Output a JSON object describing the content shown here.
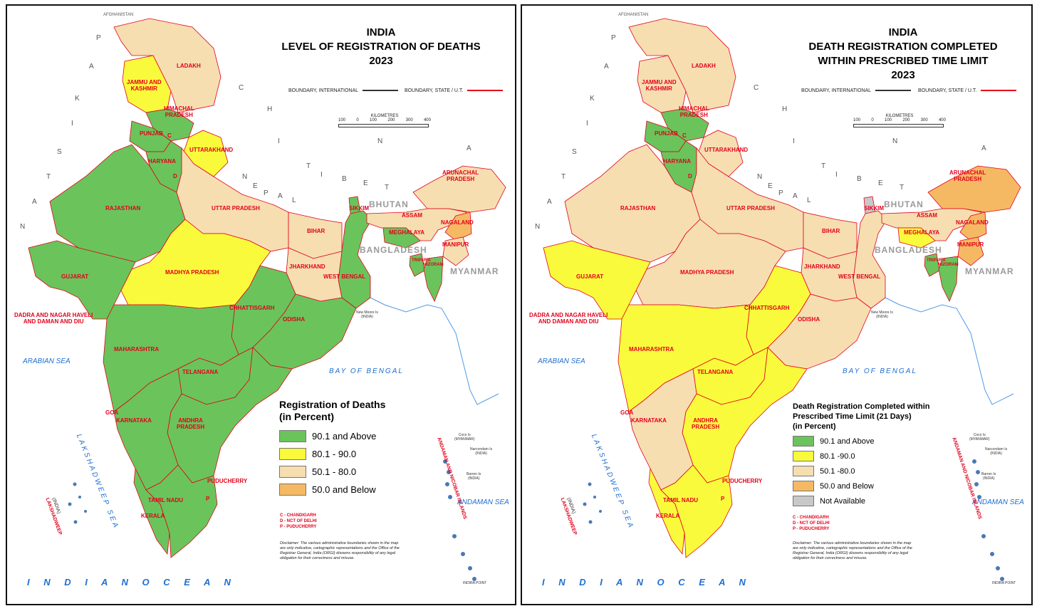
{
  "colors": {
    "high": "#6ac45b",
    "mid": "#fafa3c",
    "low": "#f6deb1",
    "lowest": "#f5b964",
    "na": "#c8c8c8",
    "sea_label": "#1f6fd1",
    "state_label": "#e3001b",
    "boundary_state": "#e3001b",
    "boundary_international": "#333333"
  },
  "left": {
    "title": [
      "INDIA",
      "LEVEL OF REGISTRATION OF DEATHS",
      "2023"
    ],
    "legend_title": [
      "Registration of Deaths",
      "(in Percent)"
    ],
    "legend": [
      {
        "label": "90.1 and Above",
        "color": "#6ac45b"
      },
      {
        "label": "80.1 - 90.0",
        "color": "#fafa3c"
      },
      {
        "label": "50.1 - 80.0",
        "color": "#f6deb1"
      },
      {
        "label": "50.0 and Below",
        "color": "#f5b964"
      }
    ]
  },
  "right": {
    "title": [
      "INDIA",
      "DEATH REGISTRATION COMPLETED",
      "WITHIN PRESCRIBED TIME LIMIT",
      "2023"
    ],
    "legend_title": [
      "Death Registration Completed within",
      "Prescribed Time Limit (21 Days)",
      "(in Percent)"
    ],
    "legend": [
      {
        "label": "90.1 and Above",
        "color": "#6ac45b"
      },
      {
        "label": "80.1 -90.0",
        "color": "#fafa3c"
      },
      {
        "label": "50.1 -80.0",
        "color": "#f6deb1"
      },
      {
        "label": "50.0 and Below",
        "color": "#f5b964"
      },
      {
        "label": "Not Available",
        "color": "#c8c8c8"
      }
    ]
  },
  "common": {
    "boundary_international": "BOUNDARY, INTERNATIONAL",
    "boundary_state": "BOUNDARY, STATE / U.T.",
    "scale_title": "KILOMETRES",
    "scale_ticks": [
      "100",
      "0",
      "100",
      "200",
      "300",
      "400"
    ],
    "afghanistan": "AFGHANISTAN",
    "countries": {
      "bhutan": "BHUTAN",
      "bangladesh": "BANGLADESH",
      "myanmar": "MYANMAR"
    },
    "neighbors_ghost": {
      "pakistan": [
        "P",
        "A",
        "K",
        "I",
        "S",
        "T",
        "A",
        "N"
      ],
      "china": [
        "C",
        "H",
        "I",
        "N",
        "A"
      ],
      "tibet": [
        "T",
        "I",
        "B",
        "E",
        "T"
      ],
      "nepal": [
        "N",
        "E",
        "P",
        "A",
        "L"
      ]
    },
    "seas": {
      "arabian": "ARABIAN SEA",
      "bengal": "BAY OF BENGAL",
      "andaman": "ANDAMAN SEA",
      "lakshadweep_sea": "LAKSHADWEEP SEA",
      "indian_ocean": "I N D I A N     O C E A N"
    },
    "islands": {
      "lakshadweep": "LAKSHADWEEP",
      "india": "(INDIA)",
      "andaman_nicobar": "ANDAMAN AND NICOBAR ISLANDS",
      "new_moore": [
        "New Moore Is",
        "(INDIA)"
      ],
      "coco": [
        "Coco Is",
        "(MYANMAR)"
      ],
      "narcondam": [
        "Narcondam Is",
        "(INDIA)"
      ],
      "barren": [
        "Barren Is",
        "(INDIA)"
      ],
      "indira_point": "INDIRA POINT"
    },
    "states": {
      "ladakh": "LADAKH",
      "jk": [
        "JAMMU AND",
        "KASHMIR"
      ],
      "hp": [
        "HIMACHAL",
        "PRADESH"
      ],
      "punjab": "PUNJAB",
      "haryana": "HARYANA",
      "uttarakhand": "UTTARAKHAND",
      "rajasthan": "RAJASTHAN",
      "up": "UTTAR PRADESH",
      "bihar": "BIHAR",
      "sikkim": "SIKKIM",
      "arunachal": [
        "ARUNACHAL",
        "PRADESH"
      ],
      "assam": "ASSAM",
      "nagaland": "NAGALAND",
      "meghalaya": "MEGHALAYA",
      "manipur": "MANIPUR",
      "tripura": "TRIPURA",
      "mizoram": "MIZORAM",
      "mp": "MADHYA PRADESH",
      "jharkhand": "JHARKHAND",
      "wb": "WEST BENGAL",
      "gujarat": "GUJARAT",
      "dnh": [
        "DADRA AND NAGAR  HAVELI",
        "AND DAMAN AND DIU"
      ],
      "chhattisgarh": "CHHATTISGARH",
      "odisha": "ODISHA",
      "maharashtra": "MAHARASHTRA",
      "telangana": "TELANGANA",
      "goa": "GOA",
      "karnataka": "KARNATAKA",
      "ap": [
        "ANDHRA",
        "PRADESH"
      ],
      "tn": "TAMIL NADU",
      "kerala": "KERALA",
      "puducherry": "PUDUCHERRY",
      "c": "C",
      "d": "D",
      "p": "P"
    },
    "notes": [
      "C - CHANDIGARH",
      "D - NCT OF DELHI",
      "P - PUDUCHERRY"
    ],
    "disclaimer": "Disclaimer: The various administrative boundaries shown in the map are only indicative, cartographic representations and the Office of the Registrar General, India (ORGI) disowns responsibility of any legal obligation for their correctness and misuse."
  },
  "map_left": {
    "ladakh": "low",
    "jk": "mid",
    "hp": "high",
    "punjab": "high",
    "haryana": "high",
    "uttarakhand": "mid",
    "rajasthan": "high",
    "up": "low",
    "bihar": "low",
    "sikkim": "high",
    "arunachal": "low",
    "assam": "low",
    "nagaland": "lowest",
    "meghalaya": "high",
    "manipur": "low",
    "tripura": "high",
    "mizoram": "high",
    "mp": "mid",
    "jharkhand": "low",
    "wb": "high",
    "gujarat": "high",
    "chhattisgarh": "high",
    "odisha": "high",
    "maharashtra": "high",
    "telangana": "high",
    "karnataka": "high",
    "ap": "high",
    "tn": "high",
    "kerala": "high"
  },
  "map_right": {
    "ladakh": "low",
    "jk": "low",
    "hp": "high",
    "punjab": "high",
    "haryana": "high",
    "uttarakhand": "low",
    "rajasthan": "low",
    "up": "low",
    "bihar": "low",
    "sikkim": "na",
    "arunachal": "lowest",
    "assam": "low",
    "nagaland": "lowest",
    "meghalaya": "mid",
    "manipur": "lowest",
    "tripura": "high",
    "mizoram": "high",
    "mp": "low",
    "jharkhand": "low",
    "wb": "low",
    "gujarat": "mid",
    "chhattisgarh": "mid",
    "odisha": "low",
    "maharashtra": "mid",
    "telangana": "mid",
    "karnataka": "low",
    "ap": "mid",
    "tn": "mid",
    "kerala": "mid"
  }
}
